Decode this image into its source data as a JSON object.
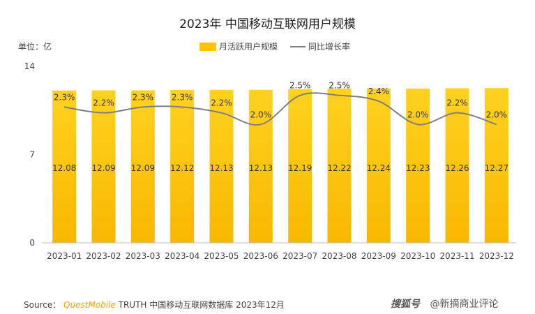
{
  "title": "2023年 中国移动互联网用户规模",
  "unit_label": "单位：亿",
  "legend": {
    "bar_label": "月活跃用户规模",
    "line_label": "同比增长率"
  },
  "source": {
    "prefix": "Source：",
    "brand": "QuestMobile",
    "rest": "TRUTH 中国移动互联网数据库 2023年12月"
  },
  "watermark": {
    "site": "搜狐号",
    "account": "@新摘商业评论"
  },
  "colors": {
    "bar": "#ffc400",
    "bar_top": "#ffd21f",
    "line": "#7f7f7f"
  },
  "chart_data": {
    "type": "bar",
    "categories": [
      "2023-01",
      "2023-02",
      "2023-03",
      "2023-04",
      "2023-05",
      "2023-06",
      "2023-07",
      "2023-08",
      "2023-09",
      "2023-10",
      "2023-11",
      "2023-12"
    ],
    "series": [
      {
        "name": "月活跃用户规模",
        "type": "bar",
        "values": [
          12.08,
          12.09,
          12.09,
          12.12,
          12.13,
          12.13,
          12.19,
          12.22,
          12.24,
          12.23,
          12.26,
          12.27
        ]
      },
      {
        "name": "同比增长率",
        "type": "line",
        "values": [
          2.3,
          2.2,
          2.3,
          2.3,
          2.2,
          2.0,
          2.5,
          2.5,
          2.4,
          2.0,
          2.2,
          2.0
        ],
        "labels": [
          "2.3%",
          "2.2%",
          "2.3%",
          "2.3%",
          "2.2%",
          "2.0%",
          "2.5%",
          "2.5%",
          "2.4%",
          "2.0%",
          "2.2%",
          "2.0%"
        ]
      }
    ],
    "ylim": [
      0,
      14
    ],
    "yticks": [
      0,
      7,
      14
    ],
    "grid": false,
    "legend_position": "top-center"
  }
}
